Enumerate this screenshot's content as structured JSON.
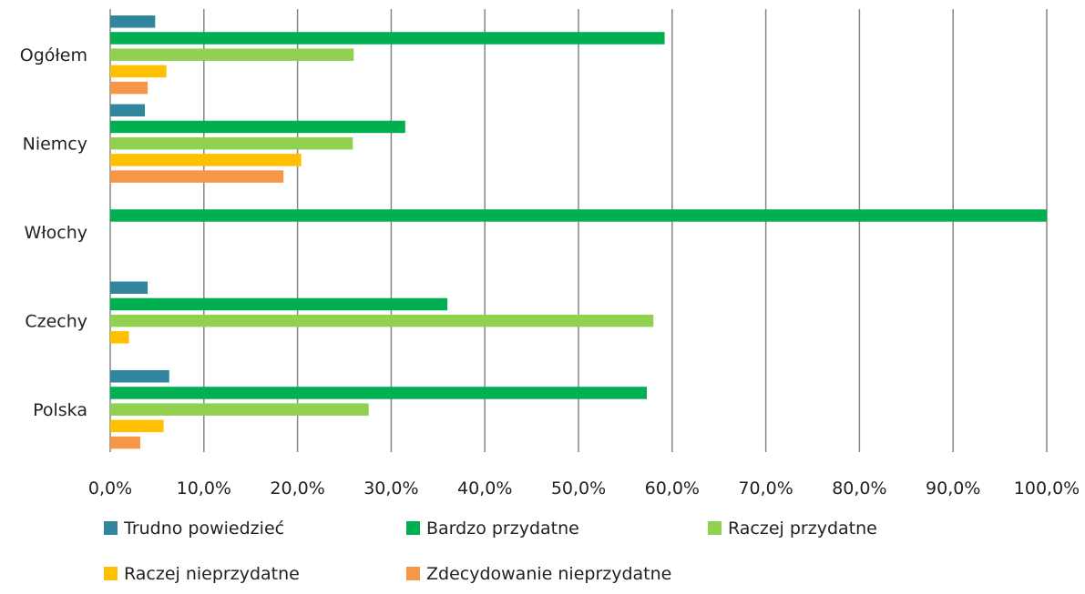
{
  "chart_data": {
    "type": "bar",
    "orientation": "horizontal",
    "categories": [
      "Ogółem",
      "Niemcy",
      "Włochy",
      "Czechy",
      "Polska"
    ],
    "series": [
      {
        "name": "Trudno powiedzieć",
        "color": "#31859c",
        "values": [
          4.8,
          3.7,
          0,
          4.0,
          6.3
        ]
      },
      {
        "name": "Bardzo przydatne",
        "color": "#00b050",
        "values": [
          59.2,
          31.5,
          100.0,
          36.0,
          57.3
        ]
      },
      {
        "name": "Raczej przydatne",
        "color": "#92d050",
        "values": [
          26.0,
          25.9,
          0,
          58.0,
          27.6
        ]
      },
      {
        "name": "Raczej nieprzydatne",
        "color": "#ffc000",
        "values": [
          6.0,
          20.4,
          0,
          2.0,
          5.7
        ]
      },
      {
        "name": "Zdecydowanie nieprzydatne",
        "color": "#f79646",
        "values": [
          4.0,
          18.5,
          0,
          0,
          3.2
        ]
      }
    ],
    "xlim": [
      0,
      100
    ],
    "xticks": [
      "0,0%",
      "10,0%",
      "20,0%",
      "30,0%",
      "40,0%",
      "50,0%",
      "60,0%",
      "70,0%",
      "80,0%",
      "90,0%",
      "100,0%"
    ],
    "grid": "vertical",
    "gridline_color": "#868686",
    "legend_placement": "bottom"
  }
}
